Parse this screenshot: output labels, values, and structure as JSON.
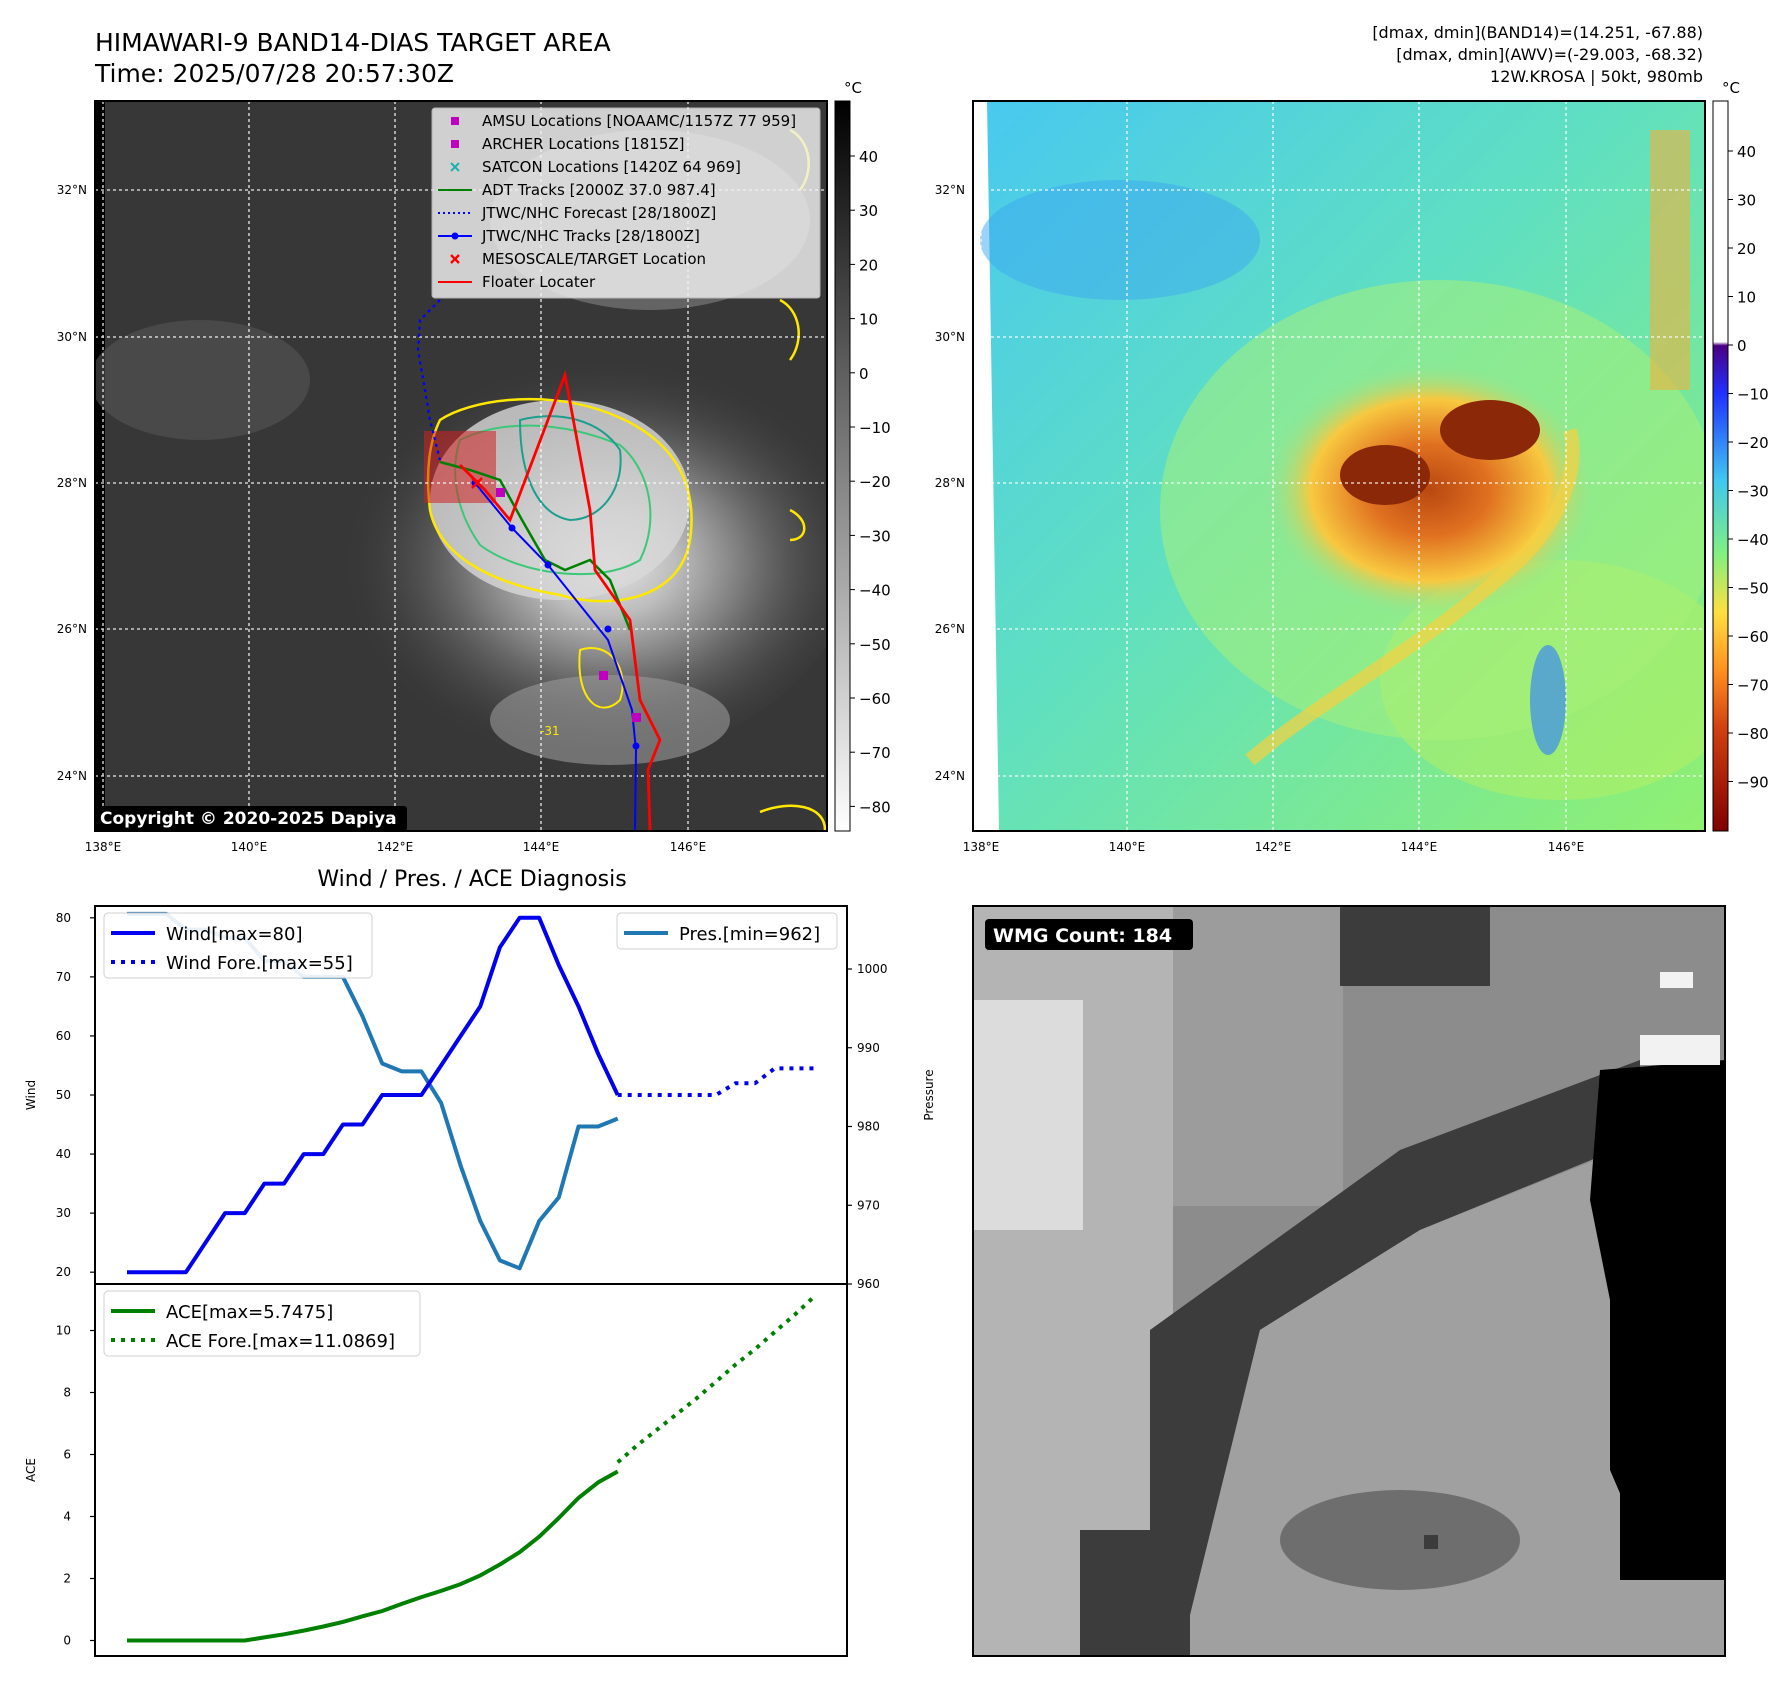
{
  "header": {
    "title": "HIMAWARI-9 BAND14-DIAS TARGET AREA",
    "time": "Time: 2025/07/28 20:57:30Z",
    "stats_line1": "[dmax, dmin](BAND14)=(14.251, -67.88)",
    "stats_line2": "[dmax, dmin](AWV)=(-29.003, -68.32)",
    "stats_line3": "12W.KROSA | 50kt, 980mb"
  },
  "map_axes": {
    "lon_ticks": [
      "138°E",
      "140°E",
      "142°E",
      "144°E",
      "146°E"
    ],
    "lat_ticks": [
      "32°N",
      "30°N",
      "28°N",
      "26°N",
      "24°N"
    ]
  },
  "ir_panel": {
    "colorbar_unit": "°C",
    "colorbar_ticks": [
      "40",
      "30",
      "20",
      "10",
      "0",
      "−10",
      "−20",
      "−30",
      "−40",
      "−50",
      "−60",
      "−70",
      "−80"
    ],
    "copyright": "Copyright © 2020-2025 Dapiya",
    "contour_label": "-31",
    "legend": [
      {
        "label": "AMSU Locations [NOAAMC/1157Z 77 959]",
        "color": "#c000c0",
        "marker": "square"
      },
      {
        "label": "ARCHER Locations [1815Z]",
        "color": "#c000c0",
        "marker": "square"
      },
      {
        "label": "SATCON Locations [1420Z 64 969]",
        "color": "#20b0b0",
        "marker": "x"
      },
      {
        "label": "ADT Tracks [2000Z 37.0 987.4]",
        "color": "#008000",
        "marker": "line"
      },
      {
        "label": "JTWC/NHC Forecast [28/1800Z]",
        "color": "#0000ff",
        "marker": "dotted"
      },
      {
        "label": "JTWC/NHC Tracks [28/1800Z]",
        "color": "#0000ff",
        "marker": "line-dot"
      },
      {
        "label": "MESOSCALE/TARGET Location",
        "color": "#ff0000",
        "marker": "x"
      },
      {
        "label": "Floater Locater",
        "color": "#ff0000",
        "marker": "line"
      }
    ]
  },
  "awv_panel": {
    "colorbar_unit": "°C",
    "colorbar_ticks": [
      "40",
      "30",
      "20",
      "10",
      "0",
      "−10",
      "−20",
      "−30",
      "−40",
      "−50",
      "−60",
      "−70",
      "−80",
      "−90"
    ]
  },
  "wmg_panel": {
    "badge": "WMG Count: 184"
  },
  "chart_data": [
    {
      "type": "line",
      "title": "Wind / Pres. / ACE Diagnosis",
      "ylabel": "Wind",
      "ylabel_right": "Pressure",
      "ylim": [
        18,
        82
      ],
      "ylim_right": [
        960,
        1008
      ],
      "x_index": [
        0,
        1,
        2,
        3,
        4,
        5,
        6,
        7,
        8,
        9,
        10,
        11,
        12,
        13,
        14,
        15,
        16,
        17,
        18,
        19,
        20,
        21,
        22,
        23,
        24,
        25,
        26,
        27,
        28,
        29,
        30,
        31,
        32,
        33,
        34,
        35
      ],
      "yticks": [
        "20",
        "30",
        "40",
        "50",
        "60",
        "70",
        "80"
      ],
      "yticks_right": [
        "960",
        "970",
        "980",
        "990",
        "1000"
      ],
      "series": [
        {
          "name": "Wind[max=80]",
          "style": "solid",
          "color": "#0000ee",
          "axis": "left",
          "x": [
            0,
            1,
            2,
            3,
            4,
            5,
            6,
            7,
            8,
            9,
            10,
            11,
            12,
            13,
            14,
            15,
            16,
            17,
            18,
            19,
            20,
            21,
            22,
            23,
            24,
            25
          ],
          "values": [
            20,
            20,
            20,
            20,
            25,
            30,
            30,
            35,
            35,
            40,
            40,
            45,
            45,
            50,
            50,
            50,
            55,
            60,
            65,
            75,
            80,
            80,
            72,
            65,
            57,
            50
          ]
        },
        {
          "name": "Wind Fore.[max=55]",
          "style": "dotted",
          "color": "#0000ee",
          "axis": "left",
          "x": [
            25,
            26,
            27,
            28,
            29,
            30,
            31,
            32,
            33,
            34,
            35
          ],
          "values": [
            50,
            50,
            50,
            50,
            50,
            50,
            52,
            52,
            54.5,
            54.5,
            54.5
          ]
        },
        {
          "name": "Pres.[min=962]",
          "style": "solid",
          "color": "#1f77b4",
          "axis": "right",
          "x": [
            0,
            1,
            2,
            3,
            4,
            5,
            6,
            7,
            8,
            9,
            10,
            11,
            12,
            13,
            14,
            15,
            16,
            17,
            18,
            19,
            20,
            21,
            22,
            23,
            24,
            25
          ],
          "values": [
            1007,
            1007,
            1007,
            1005,
            1005,
            1004,
            1004,
            1001,
            1001,
            999,
            999,
            999,
            994,
            988,
            987,
            987,
            983,
            975,
            968,
            963,
            962,
            968,
            971,
            980,
            980,
            981
          ]
        }
      ]
    },
    {
      "type": "line",
      "ylabel": "ACE",
      "ylim": [
        -0.5,
        11.5
      ],
      "yticks": [
        "0",
        "2",
        "4",
        "6",
        "8",
        "10"
      ],
      "series": [
        {
          "name": "ACE[max=5.7475]",
          "style": "solid",
          "color": "#008000",
          "x": [
            0,
            1,
            2,
            3,
            4,
            5,
            6,
            7,
            8,
            9,
            10,
            11,
            12,
            13,
            14,
            15,
            16,
            17,
            18,
            19,
            20,
            21,
            22,
            23,
            24,
            25
          ],
          "values": [
            0,
            0,
            0,
            0,
            0,
            0,
            0,
            0.1,
            0.2,
            0.32,
            0.45,
            0.6,
            0.78,
            0.95,
            1.18,
            1.4,
            1.6,
            1.82,
            2.1,
            2.45,
            2.85,
            3.35,
            3.95,
            4.6,
            5.1,
            5.45
          ]
        },
        {
          "name": "ACE Fore.[max=11.0869]",
          "style": "dotted",
          "color": "#008000",
          "x": [
            25,
            26,
            27,
            28,
            29,
            30,
            31,
            32,
            33,
            34,
            35
          ],
          "values": [
            5.75,
            6.3,
            6.8,
            7.3,
            7.8,
            8.35,
            8.9,
            9.4,
            9.95,
            10.5,
            11.0869
          ]
        }
      ]
    }
  ]
}
